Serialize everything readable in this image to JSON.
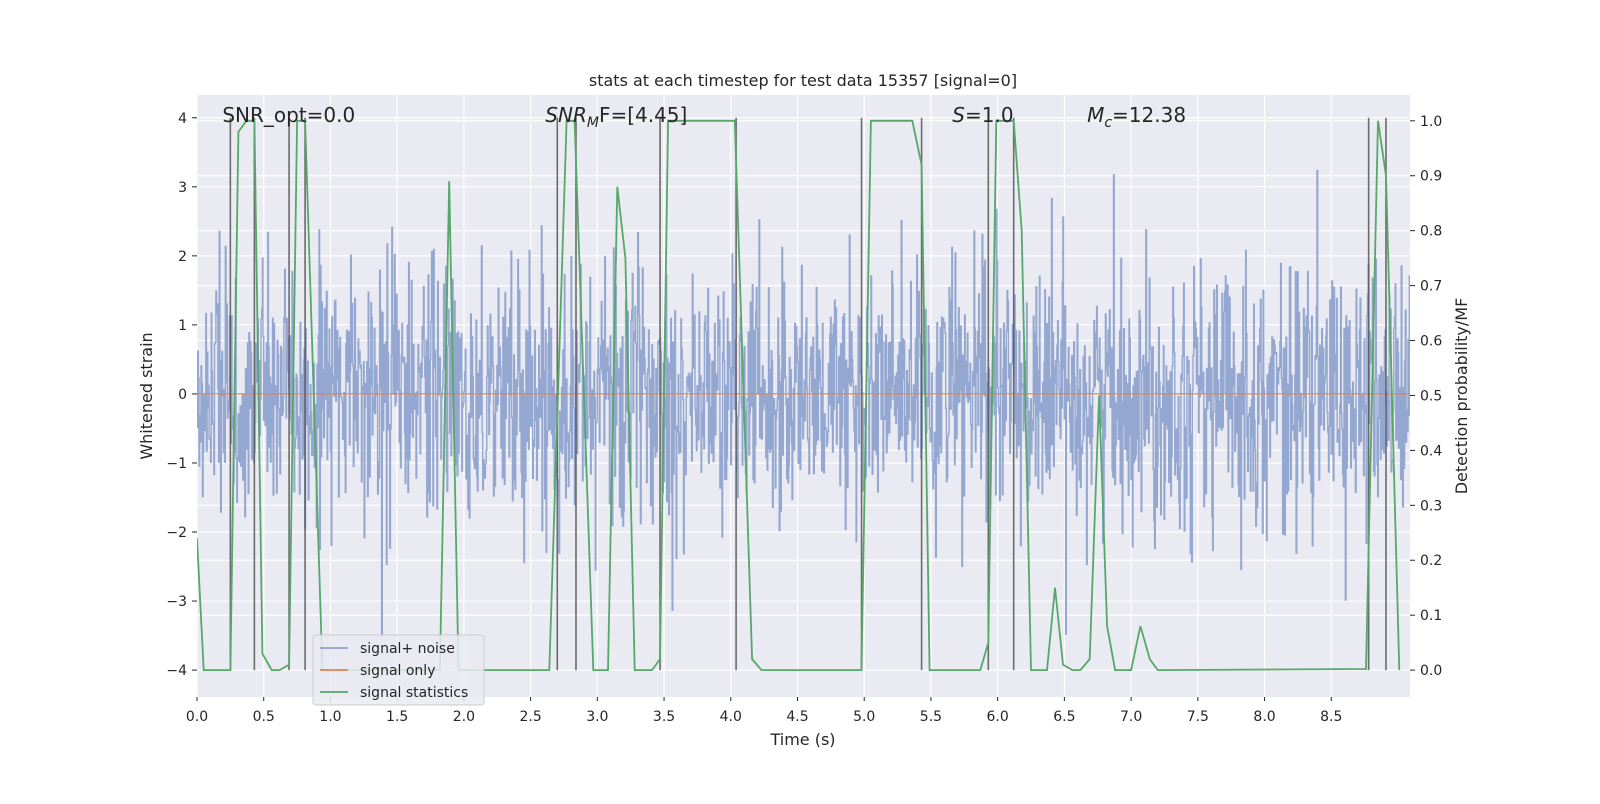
{
  "chart_data": {
    "type": "line",
    "title": "stats at each timestep for test data 15357 [signal=0]",
    "xlabel": "Time (s)",
    "ylabel_left": "Whitened strain",
    "ylabel_right": "Detection probability/MF",
    "xlim": [
      0.0,
      9.09
    ],
    "ylim_left": [
      -4.39,
      4.33
    ],
    "ylim_right": [
      -0.049,
      1.047
    ],
    "grid": true,
    "x_ticks": [
      "0.0",
      "0.5",
      "1.0",
      "1.5",
      "2.0",
      "2.5",
      "3.0",
      "3.5",
      "4.0",
      "4.5",
      "5.0",
      "5.5",
      "6.0",
      "6.5",
      "7.0",
      "7.5",
      "8.0",
      "8.5"
    ],
    "x_tick_values": [
      0.0,
      0.5,
      1.0,
      1.5,
      2.0,
      2.5,
      3.0,
      3.5,
      4.0,
      4.5,
      5.0,
      5.5,
      6.0,
      6.5,
      7.0,
      7.5,
      8.0,
      8.5
    ],
    "y_left_ticks": [
      "−4",
      "−3",
      "−2",
      "−1",
      "0",
      "1",
      "2",
      "3",
      "4"
    ],
    "y_left_tick_values": [
      -4,
      -3,
      -2,
      -1,
      0,
      1,
      2,
      3,
      4
    ],
    "y_right_ticks": [
      "0.0",
      "0.1",
      "0.2",
      "0.3",
      "0.4",
      "0.5",
      "0.6",
      "0.7",
      "0.8",
      "0.9",
      "1.0"
    ],
    "y_right_tick_values": [
      0.0,
      0.1,
      0.2,
      0.3,
      0.4,
      0.5,
      0.6,
      0.7,
      0.8,
      0.9,
      1.0
    ],
    "annotations": [
      {
        "base": "SNR_opt=0.0",
        "sub": "",
        "rest": "",
        "italic": false,
        "x": 0.19
      },
      {
        "base": "SNR",
        "sub": "M",
        "rest": "F=[4.45]",
        "italic": true,
        "x": 2.61
      },
      {
        "base": "S",
        "sub": "",
        "rest": "=1.0",
        "italic": true,
        "x": 5.66
      },
      {
        "base": "M",
        "sub": "c",
        "rest": "=12.38",
        "italic": true,
        "x": 6.67
      }
    ],
    "legend": {
      "placement": "lower-left",
      "entries": [
        {
          "label": "signal+ noise",
          "color": "#8da0cb"
        },
        {
          "label": "signal only",
          "color": "#dd8452"
        },
        {
          "label": "signal statistics",
          "color": "#55a868"
        }
      ]
    },
    "series": [
      {
        "name": "signal+ noise",
        "axis": "left",
        "color": "#8fa3cd",
        "kind": "noise",
        "noise_std": 0.95,
        "samples": 1800,
        "t_range": [
          0.0,
          9.09
        ]
      },
      {
        "name": "signal only",
        "axis": "left",
        "color": "#dd8452",
        "x": [
          0.0,
          9.09
        ],
        "y": [
          0.0,
          0.0
        ]
      },
      {
        "name": "signal statistics",
        "axis": "right",
        "color": "#55a868",
        "x": [
          0.0,
          0.05,
          0.25,
          0.31,
          0.37,
          0.43,
          0.49,
          0.56,
          0.62,
          0.69,
          0.75,
          0.81,
          0.94,
          1.82,
          1.89,
          1.96,
          2.64,
          2.77,
          2.83,
          2.97,
          3.08,
          3.15,
          3.21,
          3.28,
          3.41,
          3.47,
          3.53,
          4.03,
          4.16,
          4.23,
          4.98,
          5.05,
          5.36,
          5.43,
          5.49,
          5.87,
          5.93,
          5.99,
          6.12,
          6.18,
          6.25,
          6.37,
          6.43,
          6.49,
          6.56,
          6.62,
          6.69,
          6.76,
          6.82,
          6.88,
          7.0,
          7.07,
          7.14,
          7.2,
          8.76,
          8.85,
          8.91,
          9.01
        ],
        "y": [
          0.24,
          0.0,
          0.0,
          0.98,
          1.0,
          1.0,
          0.03,
          0.0,
          0.0,
          0.01,
          1.0,
          1.0,
          0.0,
          0.0,
          0.89,
          0.0,
          0.0,
          1.0,
          1.0,
          0.0,
          0.0,
          0.88,
          0.75,
          0.0,
          0.0,
          0.02,
          1.0,
          1.0,
          0.02,
          0.0,
          0.0,
          1.0,
          1.0,
          0.92,
          0.0,
          0.0,
          0.05,
          1.0,
          1.0,
          0.8,
          0.0,
          0.0,
          0.15,
          0.01,
          0.0,
          0.0,
          0.02,
          0.5,
          0.08,
          0.0,
          0.0,
          0.08,
          0.02,
          0.0,
          0.002,
          1.0,
          0.9,
          0.0
        ]
      }
    ],
    "vertical_markers": {
      "color": "#555555",
      "x": [
        0.25,
        0.43,
        0.69,
        0.81,
        2.7,
        2.84,
        3.47,
        4.04,
        4.98,
        5.43,
        5.93,
        6.12,
        8.78,
        8.91
      ],
      "y_range": [
        -4,
        4
      ]
    },
    "colors": {
      "background": "#eaeaf2",
      "grid": "#ffffff"
    }
  }
}
